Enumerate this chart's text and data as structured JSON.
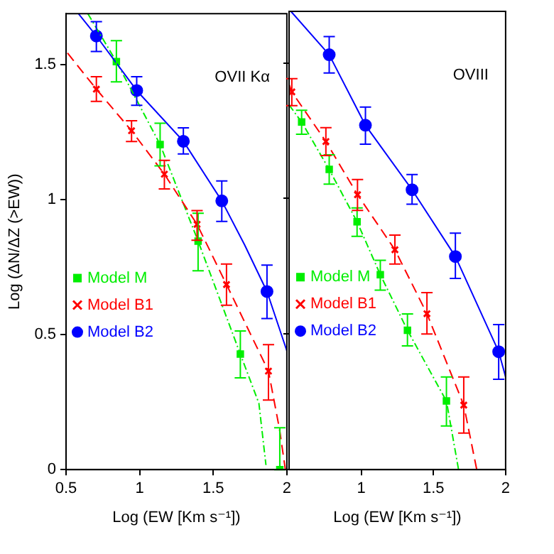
{
  "chart_data": [
    {
      "type": "line",
      "annotations": [
        "OVII Kα"
      ],
      "xlabel": "Log (EW [Km s⁻¹])",
      "ylabel": "Log (ΔN/ΔZ (>EW))",
      "xlim": [
        0.5,
        2
      ],
      "xticks": [
        0.5,
        1,
        1.5,
        2
      ],
      "ylim": [
        0,
        1.69
      ],
      "yticks": [
        0,
        0.5,
        1,
        1.5
      ],
      "grid": false,
      "legend": "bottom left",
      "series": [
        {
          "color": "#0000ff",
          "line_style": "solid",
          "marker": "none",
          "x": [
            0.584,
            0.706,
            0.98,
            1.297,
            1.558,
            1.713,
            1.865,
            2.0
          ],
          "values": [
            1.69,
            1.607,
            1.405,
            1.217,
            0.996,
            0.833,
            0.66,
            0.44
          ]
        },
        {
          "color": "#ff0000",
          "line_style": "dashed",
          "marker": "none",
          "x": [
            0.51,
            0.706,
            0.945,
            1.168,
            1.39,
            1.59,
            1.875,
            1.95,
            1.99
          ],
          "values": [
            1.544,
            1.41,
            1.256,
            1.095,
            0.909,
            0.686,
            0.365,
            0.15,
            0
          ]
        },
        {
          "color": "#00ee00",
          "line_style": "dotted",
          "marker": "none",
          "x": [
            0.648,
            0.842,
            1.139,
            1.397,
            1.684,
            1.81,
            1.858
          ],
          "values": [
            1.69,
            1.512,
            1.205,
            0.847,
            0.428,
            0.246,
            0.017
          ]
        },
        {
          "type": "scatter",
          "name": "Model M",
          "color": "#00ee00",
          "marker": "square",
          "x": [
            0.842,
            1.139,
            1.397,
            1.684,
            1.952
          ],
          "values": [
            1.512,
            1.205,
            0.847,
            0.428,
            0
          ],
          "errors": [
            [
              1.437,
              1.59
            ],
            [
              1.126,
              1.284
            ],
            [
              0.737,
              0.95
            ],
            [
              0.34,
              0.514
            ],
            [
              0,
              0.155
            ]
          ]
        },
        {
          "type": "scatter",
          "name": "Model B1",
          "color": "#ff0000",
          "marker": "cross",
          "x": [
            0.706,
            0.945,
            1.168,
            1.39,
            1.59,
            1.875
          ],
          "values": [
            1.41,
            1.256,
            1.095,
            0.909,
            0.686,
            0.365
          ],
          "errors": [
            [
              1.365,
              1.456
            ],
            [
              1.216,
              1.293
            ],
            [
              1.04,
              1.146
            ],
            [
              0.85,
              0.96
            ],
            [
              0.609,
              0.762
            ],
            [
              0.258,
              0.463
            ]
          ]
        },
        {
          "type": "scatter",
          "name": "Model B2",
          "color": "#0000ff",
          "marker": "circle",
          "x": [
            0.706,
            0.98,
            1.297,
            1.558,
            1.865
          ],
          "values": [
            1.607,
            1.405,
            1.217,
            0.996,
            0.66
          ],
          "errors": [
            [
              1.55,
              1.66
            ],
            [
              1.35,
              1.456
            ],
            [
              1.17,
              1.267
            ],
            [
              0.92,
              1.07
            ],
            [
              0.56,
              0.758
            ]
          ]
        }
      ]
    },
    {
      "type": "line",
      "annotations": [
        "OVIII"
      ],
      "xlabel": "Log (EW [Km s⁻¹])",
      "xlim": [
        0.5,
        2
      ],
      "xticks": [
        1,
        1.5,
        2
      ],
      "ylim": [
        0,
        1.69
      ],
      "yticks": [
        0,
        0.5,
        1,
        1.5
      ],
      "tick_labels": "x",
      "grid": false,
      "legend": "bottom left",
      "series": [
        {
          "color": "#0000ff",
          "line_style": "solid",
          "marker": "none",
          "x": [
            0.513,
            0.778,
            1.029,
            1.352,
            1.652,
            1.952,
            2.0
          ],
          "values": [
            1.69,
            1.53,
            1.27,
            1.032,
            0.786,
            0.435,
            0.342
          ]
        },
        {
          "color": "#ff0000",
          "line_style": "dashed",
          "marker": "none",
          "x": [
            0.5,
            0.519,
            0.755,
            0.974,
            1.233,
            1.455,
            1.71,
            1.8
          ],
          "values": [
            1.42,
            1.393,
            1.21,
            1.014,
            0.811,
            0.575,
            0.238,
            0
          ]
        },
        {
          "color": "#00ee00",
          "line_style": "dotted",
          "marker": "none",
          "x": [
            0.5,
            0.587,
            0.778,
            0.971,
            1.132,
            1.32,
            1.59,
            1.674
          ],
          "values": [
            1.345,
            1.282,
            1.107,
            0.914,
            0.719,
            0.514,
            0.253,
            0
          ]
        },
        {
          "type": "scatter",
          "name": "Model M",
          "color": "#00ee00",
          "marker": "square",
          "x": [
            0.587,
            0.778,
            0.971,
            1.132,
            1.32,
            1.59
          ],
          "values": [
            1.282,
            1.107,
            0.914,
            0.719,
            0.514,
            0.253
          ],
          "errors": [
            [
              1.237,
              1.325
            ],
            [
              1.053,
              1.161
            ],
            [
              0.86,
              0.965
            ],
            [
              0.662,
              0.772
            ],
            [
              0.456,
              0.574
            ],
            [
              0.161,
              0.342
            ]
          ]
        },
        {
          "type": "scatter",
          "name": "Model B1",
          "color": "#ff0000",
          "marker": "cross",
          "x": [
            0.519,
            0.755,
            0.974,
            1.233,
            1.455,
            1.71
          ],
          "values": [
            1.393,
            1.21,
            1.014,
            0.811,
            0.575,
            0.238
          ],
          "errors": [
            [
              1.342,
              1.442
            ],
            [
              1.158,
              1.261
            ],
            [
              0.956,
              1.07
            ],
            [
              0.758,
              0.865
            ],
            [
              0.5,
              0.653
            ],
            [
              0.135,
              0.342
            ]
          ]
        },
        {
          "type": "scatter",
          "name": "Model B2",
          "color": "#0000ff",
          "marker": "circle",
          "x": [
            0.778,
            1.029,
            1.352,
            1.652,
            1.952
          ],
          "values": [
            1.53,
            1.27,
            1.032,
            0.786,
            0.435
          ],
          "errors": [
            [
              1.463,
              1.597
            ],
            [
              1.2,
              1.337
            ],
            [
              0.979,
              1.088
            ],
            [
              0.705,
              0.872
            ],
            [
              0.333,
              0.535
            ]
          ]
        }
      ]
    }
  ]
}
